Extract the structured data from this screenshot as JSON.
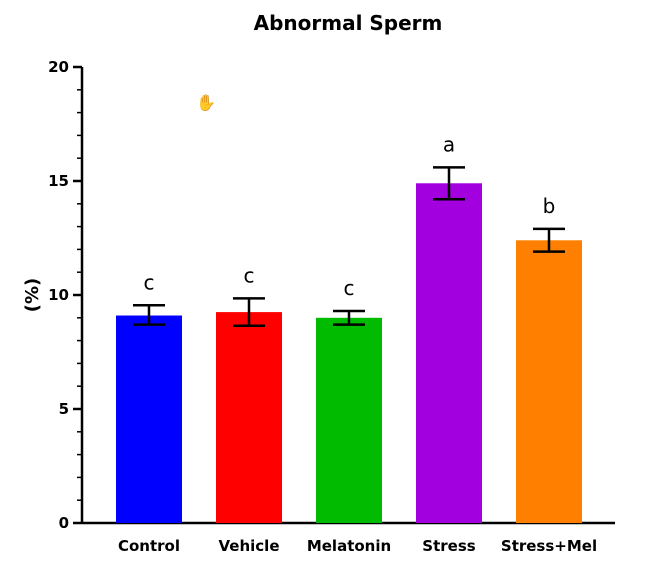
{
  "chart_data": {
    "type": "bar",
    "title": "Abnormal Sperm",
    "xlabel": "",
    "ylabel": "(%)",
    "ylim": [
      0,
      20
    ],
    "yticks": [
      0,
      5,
      10,
      15,
      20
    ],
    "ytick_labels": [
      "0",
      "5",
      "10",
      "15",
      "20"
    ],
    "minor_ticks_per_major": 4,
    "grid": false,
    "legend": "none",
    "categories": [
      "Control",
      "Vehicle",
      "Melatonin",
      "Stress",
      "Stress+Mel"
    ],
    "values": [
      9.1,
      9.25,
      9.0,
      14.9,
      12.4
    ],
    "error_upper": [
      9.55,
      9.85,
      9.3,
      15.6,
      12.9
    ],
    "error_lower": [
      8.7,
      8.65,
      8.7,
      14.2,
      11.9
    ],
    "significance": [
      "c",
      "c",
      "c",
      "a",
      "b"
    ],
    "colors": [
      "#0000ff",
      "#ff0000",
      "#00bb00",
      "#a300e0",
      "#ff8000"
    ]
  },
  "cursor": {
    "icon": "hand-pointer-icon",
    "glyph": "✋"
  }
}
